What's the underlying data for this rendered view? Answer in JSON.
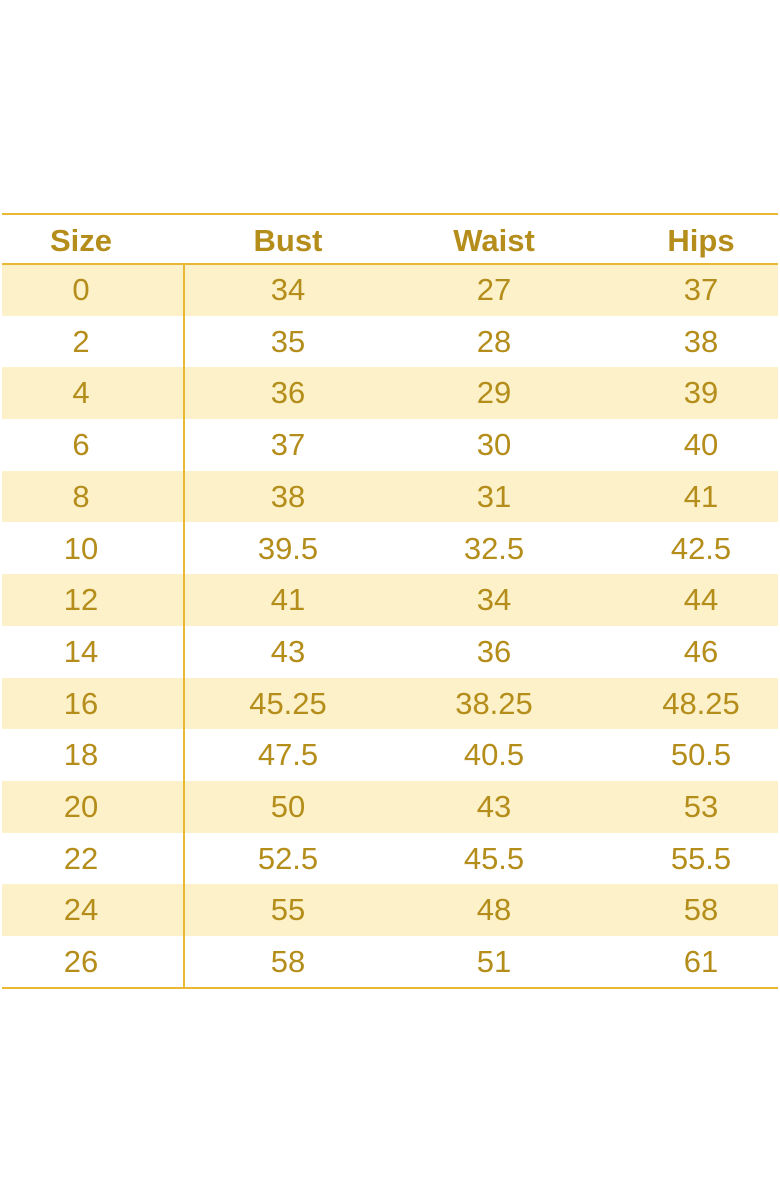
{
  "table": {
    "header": [
      "Size",
      "Bust",
      "Waist",
      "Hips"
    ],
    "rows": [
      [
        "0",
        "34",
        "27",
        "37"
      ],
      [
        "2",
        "35",
        "28",
        "38"
      ],
      [
        "4",
        "36",
        "29",
        "39"
      ],
      [
        "6",
        "37",
        "30",
        "40"
      ],
      [
        "8",
        "38",
        "31",
        "41"
      ],
      [
        "10",
        "39.5",
        "32.5",
        "42.5"
      ],
      [
        "12",
        "41",
        "34",
        "44"
      ],
      [
        "14",
        "43",
        "36",
        "46"
      ],
      [
        "16",
        "45.25",
        "38.25",
        "48.25"
      ],
      [
        "18",
        "47.5",
        "40.5",
        "50.5"
      ],
      [
        "20",
        "50",
        "43",
        "53"
      ],
      [
        "22",
        "52.5",
        "45.5",
        "55.5"
      ],
      [
        "24",
        "55",
        "48",
        "58"
      ],
      [
        "26",
        "58",
        "51",
        "61"
      ]
    ]
  }
}
